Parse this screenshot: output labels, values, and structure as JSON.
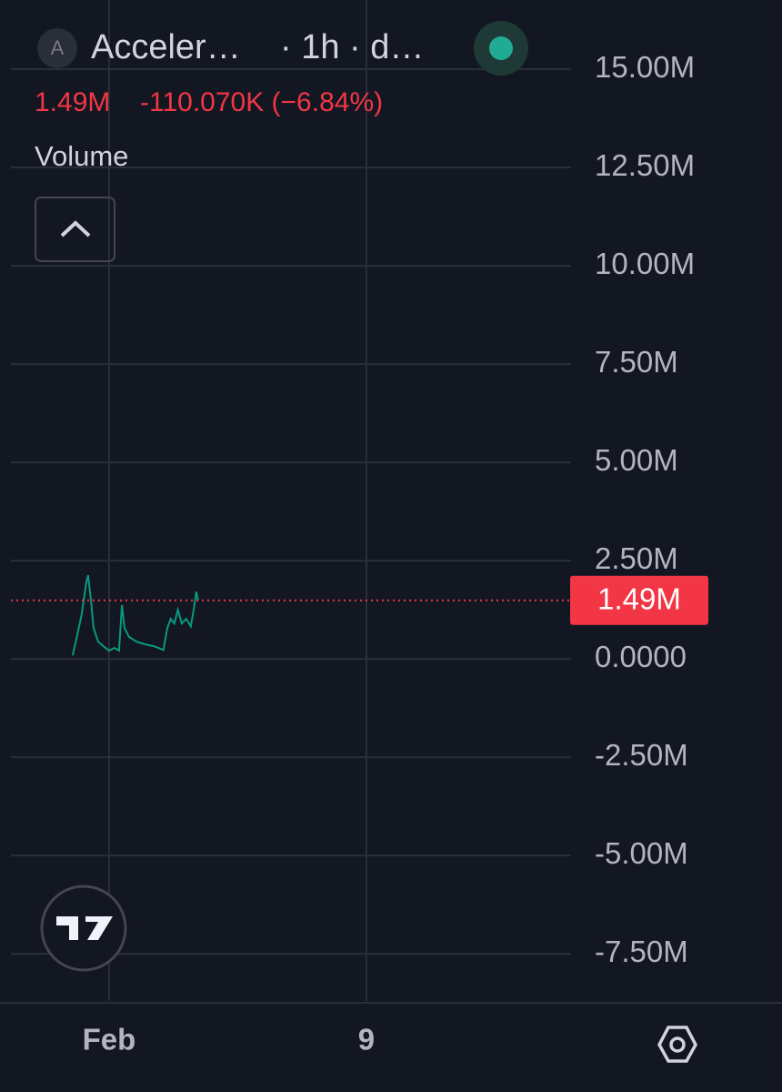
{
  "header": {
    "symbol_icon": "A",
    "symbol": "Acceler…",
    "interval": "· 1h · d…",
    "last": "1.49M",
    "change": "-110.070K (−6.84%)",
    "indicator": "Volume"
  },
  "chart_data": {
    "type": "line",
    "color": "#089981",
    "x": [
      -0.13,
      0.0,
      0.15,
      0.29,
      0.35,
      0.44,
      0.52,
      0.66,
      0.83,
      1.0,
      1.17,
      1.31,
      1.4,
      1.48,
      1.62,
      1.85,
      2.13,
      2.41,
      2.69,
      2.81,
      2.92,
      3.03,
      3.14,
      3.26,
      3.4,
      3.54,
      3.63,
      3.71,
      3.77
    ],
    "values": [
      90000,
      560000,
      1130000,
      1940000,
      2130000,
      1480000,
      790000,
      440000,
      320000,
      210000,
      280000,
      210000,
      1370000,
      790000,
      560000,
      440000,
      370000,
      320000,
      230000,
      790000,
      1020000,
      900000,
      1250000,
      900000,
      1020000,
      830000,
      1250000,
      1710000,
      1490000
    ],
    "xlim": [
      -2.05,
      15.36
    ],
    "xticks": [
      {
        "value": 1,
        "label": "Feb"
      },
      9
    ],
    "ylim": [
      -8700000,
      16760000
    ],
    "yticks": [
      {
        "value": -7500000,
        "label": "-7.50M"
      },
      {
        "value": -5000000,
        "label": "-5.00M"
      },
      {
        "value": -2500000,
        "label": "-2.50M"
      },
      {
        "value": 0,
        "label": "0.0000"
      },
      {
        "value": 2500000,
        "label": "2.50M"
      },
      {
        "value": 5000000,
        "label": "5.00M"
      },
      {
        "value": 7500000,
        "label": "7.50M"
      },
      {
        "value": 10000000,
        "label": "10.00M"
      },
      {
        "value": 12500000,
        "label": "12.50M"
      },
      {
        "value": 15000000,
        "label": "15.00M"
      }
    ],
    "last_value": {
      "value": 1490000,
      "label": "1.49M"
    },
    "last_color": "#f23645",
    "grid": true
  }
}
